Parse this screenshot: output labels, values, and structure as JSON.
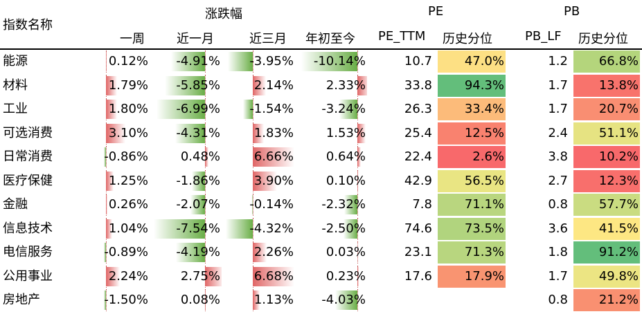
{
  "headers": {
    "name": "指数名称",
    "change_group": "涨跌幅",
    "week": "一周",
    "month": "近一月",
    "three_month": "近三月",
    "ytd": "年初至今",
    "pe_group": "PE",
    "pe_ttm": "PE_TTM",
    "pe_pct": "历史分位",
    "pb_group": "PB",
    "pb_lf": "PB_LF",
    "pb_pct": "历史分位"
  },
  "colors": {
    "neg_bar": "#6aae47",
    "pos_bar": "#e06666"
  },
  "rows": [
    {
      "name": "能源",
      "week": "0.12%",
      "month": "-4.91%",
      "three_month": "-3.95%",
      "ytd": "-10.14%",
      "pe": "10.7",
      "pe_pct": "47.0%",
      "pe_color": "#fde084",
      "pb": "1.2",
      "pb_pct": "66.8%",
      "pb_color": "#b4d57c"
    },
    {
      "name": "材料",
      "week": "1.79%",
      "month": "-5.85%",
      "three_month": "2.14%",
      "ytd": "2.33%",
      "pe": "33.8",
      "pe_pct": "94.3%",
      "pe_color": "#63be7b",
      "pb": "1.7",
      "pb_pct": "13.8%",
      "pb_color": "#f8736c"
    },
    {
      "name": "工业",
      "week": "1.80%",
      "month": "-6.99%",
      "three_month": "-1.54%",
      "ytd": "-3.24%",
      "pe": "26.3",
      "pe_pct": "33.4%",
      "pe_color": "#fcbb7a",
      "pb": "1.7",
      "pb_pct": "20.7%",
      "pb_color": "#f98e72"
    },
    {
      "name": "可选消费",
      "week": "3.10%",
      "month": "-4.31%",
      "three_month": "1.83%",
      "ytd": "1.53%",
      "pe": "25.4",
      "pe_pct": "12.5%",
      "pe_color": "#f9826f",
      "pb": "2.4",
      "pb_pct": "51.1%",
      "pb_color": "#e6e382"
    },
    {
      "name": "日常消费",
      "week": "-0.86%",
      "month": "0.48%",
      "three_month": "6.66%",
      "ytd": "0.64%",
      "pe": "22.4",
      "pe_pct": "2.6%",
      "pe_color": "#f8696b",
      "pb": "3.8",
      "pb_pct": "10.2%",
      "pb_color": "#f8696b"
    },
    {
      "name": "医疗保健",
      "week": "1.25%",
      "month": "-1.86%",
      "three_month": "3.90%",
      "ytd": "0.10%",
      "pe": "42.9",
      "pe_pct": "56.5%",
      "pe_color": "#e9e583",
      "pb": "2.7",
      "pb_pct": "12.3%",
      "pb_color": "#f86f6c"
    },
    {
      "name": "金融",
      "week": "0.26%",
      "month": "-2.07%",
      "three_month": "-0.14%",
      "ytd": "-2.32%",
      "pe": "7.8",
      "pe_pct": "71.1%",
      "pe_color": "#b9d67f",
      "pb": "0.8",
      "pb_pct": "57.7%",
      "pb_color": "#cadc81"
    },
    {
      "name": "信息技术",
      "week": "1.04%",
      "month": "-7.54%",
      "three_month": "-4.32%",
      "ytd": "-2.50%",
      "pe": "74.6",
      "pe_pct": "73.5%",
      "pe_color": "#b1d47e",
      "pb": "3.6",
      "pb_pct": "41.5%",
      "pb_color": "#fde783"
    },
    {
      "name": "电信服务",
      "week": "-0.89%",
      "month": "-4.19%",
      "three_month": "2.26%",
      "ytd": "0.03%",
      "pe": "23.1",
      "pe_pct": "71.3%",
      "pe_color": "#b8d67f",
      "pb": "1.8",
      "pb_pct": "91.2%",
      "pb_color": "#63be7b"
    },
    {
      "name": "公用事业",
      "week": "2.24%",
      "month": "2.75%",
      "three_month": "6.68%",
      "ytd": "0.23%",
      "pe": "17.6",
      "pe_pct": "17.9%",
      "pe_color": "#f99471",
      "pb": "1.7",
      "pb_pct": "49.8%",
      "pb_color": "#ece583"
    },
    {
      "name": "房地产",
      "week": "-1.50%",
      "month": "0.08%",
      "three_month": "1.13%",
      "ytd": "-4.03%",
      "pe": "",
      "pe_pct": "",
      "pe_color": "",
      "pb": "0.8",
      "pb_pct": "21.2%",
      "pb_color": "#f99071"
    }
  ]
}
